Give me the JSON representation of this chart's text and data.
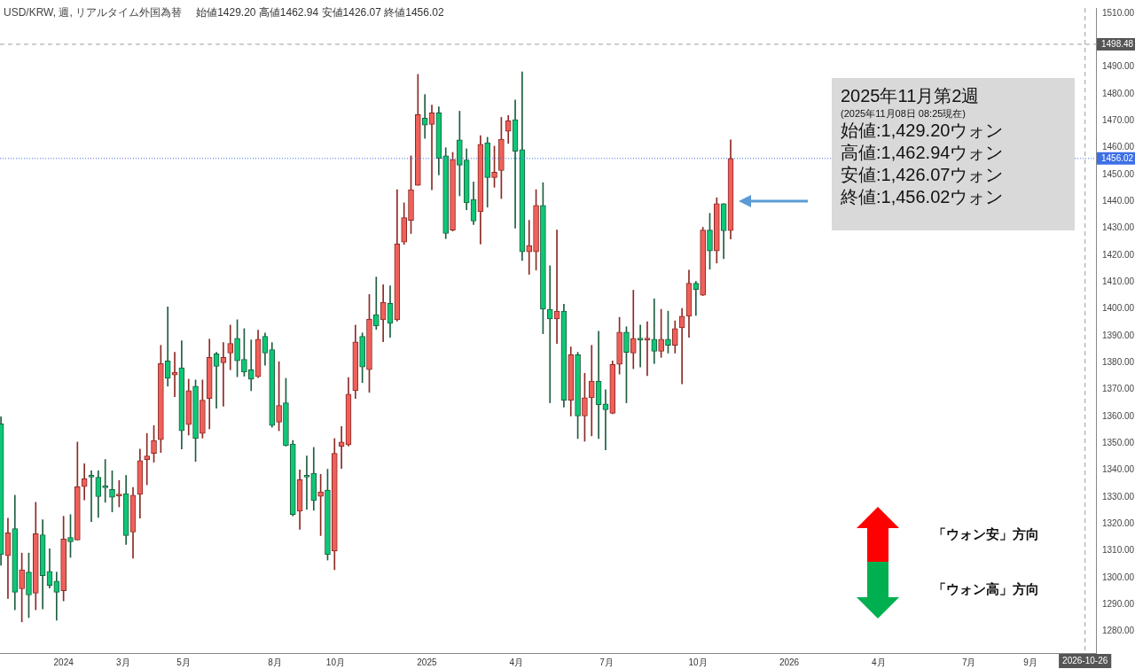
{
  "chart_data": {
    "type": "candlestick",
    "title": "USD/KRW, 週, リアルタイム外国為替",
    "subtitle": "始値1429.20 高値1462.94 安値1426.07 終値1456.02",
    "x": [
      "2023-10-30",
      "2023-11-06",
      "2023-11-13",
      "2023-11-20",
      "2023-11-27",
      "2023-12-04",
      "2023-12-11",
      "2023-12-18",
      "2023-12-25",
      "2024-01-01",
      "2024-01-08",
      "2024-01-15",
      "2024-01-22",
      "2024-01-29",
      "2024-02-05",
      "2024-02-12",
      "2024-02-19",
      "2024-02-26",
      "2024-03-04",
      "2024-03-11",
      "2024-03-18",
      "2024-03-25",
      "2024-04-01",
      "2024-04-08",
      "2024-04-15",
      "2024-04-22",
      "2024-04-29",
      "2024-05-06",
      "2024-05-13",
      "2024-05-20",
      "2024-05-27",
      "2024-06-03",
      "2024-06-10",
      "2024-06-17",
      "2024-06-24",
      "2024-07-01",
      "2024-07-08",
      "2024-07-15",
      "2024-07-22",
      "2024-07-29",
      "2024-08-05",
      "2024-08-12",
      "2024-08-19",
      "2024-08-26",
      "2024-09-02",
      "2024-09-09",
      "2024-09-16",
      "2024-09-23",
      "2024-09-30",
      "2024-10-07",
      "2024-10-14",
      "2024-10-21",
      "2024-10-28",
      "2024-11-04",
      "2024-11-11",
      "2024-11-18",
      "2024-11-25",
      "2024-12-02",
      "2024-12-09",
      "2024-12-16",
      "2024-12-23",
      "2024-12-30",
      "2025-01-06",
      "2025-01-13",
      "2025-01-20",
      "2025-01-27",
      "2025-02-03",
      "2025-02-10",
      "2025-02-17",
      "2025-02-24",
      "2025-03-03",
      "2025-03-10",
      "2025-03-17",
      "2025-03-24",
      "2025-03-31",
      "2025-04-07",
      "2025-04-14",
      "2025-04-21",
      "2025-04-28",
      "2025-05-05",
      "2025-05-12",
      "2025-05-19",
      "2025-05-26",
      "2025-06-02",
      "2025-06-09",
      "2025-06-16",
      "2025-06-23",
      "2025-06-30",
      "2025-07-07",
      "2025-07-14",
      "2025-07-21",
      "2025-07-28",
      "2025-08-04",
      "2025-08-11",
      "2025-08-18",
      "2025-08-25",
      "2025-09-01",
      "2025-09-08",
      "2025-09-15",
      "2025-09-22",
      "2025-09-29",
      "2025-10-06",
      "2025-10-13",
      "2025-10-20",
      "2025-10-27",
      "2025-11-03"
    ],
    "ohlc": [
      [
        1357.3,
        1359.9,
        1304.7,
        1308.6
      ],
      [
        1308.2,
        1322.2,
        1292.3,
        1316.7
      ],
      [
        1318.3,
        1330.7,
        1288.1,
        1294.6
      ],
      [
        1295.9,
        1309.2,
        1283.6,
        1303.0
      ],
      [
        1302.1,
        1309.2,
        1285.2,
        1293.6
      ],
      [
        1294.3,
        1328.1,
        1288.1,
        1316.4
      ],
      [
        1316.0,
        1321.6,
        1288.4,
        1300.8
      ],
      [
        1302.4,
        1310.8,
        1296.2,
        1297.2
      ],
      [
        1298.8,
        1302.1,
        1284.2,
        1294.6
      ],
      [
        1295.2,
        1322.9,
        1291.4,
        1314.4
      ],
      [
        1315.0,
        1323.5,
        1307.6,
        1313.4
      ],
      [
        1314.1,
        1350.5,
        1314.1,
        1333.9
      ],
      [
        1333.9,
        1342.4,
        1329.0,
        1336.8
      ],
      [
        1338.0,
        1339.8,
        1320.9,
        1337.5
      ],
      [
        1337.4,
        1339.8,
        1322.5,
        1330.2
      ],
      [
        1334.0,
        1344.0,
        1328.1,
        1333.5
      ],
      [
        1332.9,
        1339.8,
        1324.5,
        1330.0
      ],
      [
        1330.5,
        1336.2,
        1326.4,
        1331.0
      ],
      [
        1331.3,
        1338.1,
        1312.4,
        1315.7
      ],
      [
        1317.0,
        1333.6,
        1307.3,
        1330.7
      ],
      [
        1331.0,
        1347.9,
        1322.2,
        1343.6
      ],
      [
        1344.0,
        1353.7,
        1334.6,
        1345.3
      ],
      [
        1346.3,
        1356.6,
        1343.0,
        1351.1
      ],
      [
        1351.4,
        1386.5,
        1346.6,
        1379.7
      ],
      [
        1380.7,
        1400.8,
        1371.3,
        1374.2
      ],
      [
        1375.5,
        1383.9,
        1367.4,
        1376.5
      ],
      [
        1378.1,
        1388.2,
        1347.9,
        1354.7
      ],
      [
        1357.0,
        1373.9,
        1353.1,
        1369.6
      ],
      [
        1371.3,
        1373.6,
        1343.3,
        1351.8
      ],
      [
        1353.7,
        1373.6,
        1352.0,
        1366.1
      ],
      [
        1366.7,
        1388.8,
        1355.4,
        1382.0
      ],
      [
        1383.3,
        1383.9,
        1363.1,
        1378.7
      ],
      [
        1380.0,
        1387.5,
        1363.8,
        1382.0
      ],
      [
        1383.6,
        1394.0,
        1377.4,
        1387.2
      ],
      [
        1389.1,
        1396.0,
        1374.8,
        1380.7
      ],
      [
        1381.3,
        1392.7,
        1375.0,
        1376.5
      ],
      [
        1377.4,
        1388.5,
        1369.6,
        1373.9
      ],
      [
        1374.8,
        1392.1,
        1374.5,
        1388.8
      ],
      [
        1389.8,
        1391.1,
        1379.1,
        1383.6
      ],
      [
        1384.9,
        1387.5,
        1356.0,
        1356.7
      ],
      [
        1357.9,
        1380.4,
        1354.7,
        1364.1
      ],
      [
        1365.1,
        1374.2,
        1349.0,
        1349.2
      ],
      [
        1349.8,
        1351.1,
        1323.0,
        1323.5
      ],
      [
        1324.8,
        1340.1,
        1318.0,
        1336.5
      ],
      [
        1338.0,
        1345.3,
        1325.4,
        1337.5
      ],
      [
        1338.9,
        1348.5,
        1325.1,
        1328.7
      ],
      [
        1330.3,
        1338.5,
        1315.7,
        1332.0
      ],
      [
        1332.6,
        1340.4,
        1306.6,
        1308.6
      ],
      [
        1309.9,
        1351.8,
        1303.0,
        1346.3
      ],
      [
        1348.9,
        1356.3,
        1340.7,
        1350.5
      ],
      [
        1349.5,
        1374.5,
        1349.0,
        1368.3
      ],
      [
        1369.6,
        1394.0,
        1366.7,
        1387.8
      ],
      [
        1389.8,
        1391.1,
        1372.6,
        1378.4
      ],
      [
        1377.4,
        1405.4,
        1369.0,
        1396.3
      ],
      [
        1397.9,
        1411.9,
        1392.4,
        1393.7
      ],
      [
        1396.0,
        1409.0,
        1387.8,
        1402.5
      ],
      [
        1402.1,
        1408.6,
        1389.5,
        1394.7
      ],
      [
        1396.0,
        1444.4,
        1395.5,
        1424.2
      ],
      [
        1424.9,
        1439.5,
        1424.0,
        1434.0
      ],
      [
        1433.0,
        1457.0,
        1428.1,
        1444.4
      ],
      [
        1446.0,
        1487.3,
        1446.0,
        1472.3
      ],
      [
        1471.0,
        1479.8,
        1463.5,
        1468.4
      ],
      [
        1468.7,
        1475.9,
        1444.4,
        1473.0
      ],
      [
        1473.0,
        1475.2,
        1449.9,
        1456.1
      ],
      [
        1457.0,
        1460.0,
        1426.2,
        1428.1
      ],
      [
        1429.4,
        1458.3,
        1429.0,
        1455.7
      ],
      [
        1462.9,
        1473.6,
        1442.1,
        1453.5
      ],
      [
        1455.4,
        1459.6,
        1436.9,
        1439.5
      ],
      [
        1440.8,
        1447.3,
        1431.4,
        1432.7
      ],
      [
        1436.2,
        1464.5,
        1424.2,
        1461.3
      ],
      [
        1461.9,
        1463.9,
        1437.9,
        1448.9
      ],
      [
        1448.9,
        1460.6,
        1445.3,
        1450.9
      ],
      [
        1451.5,
        1471.3,
        1441.1,
        1463.2
      ],
      [
        1466.1,
        1472.0,
        1461.6,
        1470.0
      ],
      [
        1470.4,
        1477.8,
        1430.1,
        1458.7
      ],
      [
        1459.3,
        1488.2,
        1418.1,
        1421.3
      ],
      [
        1421.3,
        1433.0,
        1412.9,
        1423.6
      ],
      [
        1421.3,
        1444.4,
        1414.5,
        1438.5
      ],
      [
        1438.5,
        1447.0,
        1390.8,
        1399.9
      ],
      [
        1399.9,
        1416.1,
        1365.1,
        1396.3
      ],
      [
        1396.3,
        1429.4,
        1387.2,
        1399.2
      ],
      [
        1399.2,
        1401.8,
        1363.5,
        1366.1
      ],
      [
        1366.1,
        1385.9,
        1360.2,
        1383.0
      ],
      [
        1383.0,
        1383.9,
        1351.8,
        1360.2
      ],
      [
        1360.2,
        1376.1,
        1350.8,
        1367.0
      ],
      [
        1367.0,
        1386.5,
        1352.8,
        1373.2
      ],
      [
        1373.2,
        1391.7,
        1351.8,
        1364.4
      ],
      [
        1364.7,
        1370.0,
        1347.6,
        1362.5
      ],
      [
        1361.2,
        1380.7,
        1361.0,
        1379.4
      ],
      [
        1379.4,
        1396.9,
        1375.8,
        1391.4
      ],
      [
        1391.4,
        1393.4,
        1365.1,
        1383.9
      ],
      [
        1383.6,
        1407.0,
        1377.8,
        1389.1
      ],
      [
        1389.0,
        1394.0,
        1378.4,
        1388.5
      ],
      [
        1388.5,
        1395.3,
        1375.2,
        1389.0
      ],
      [
        1388.8,
        1403.8,
        1379.7,
        1384.3
      ],
      [
        1384.3,
        1399.9,
        1382.0,
        1388.8
      ],
      [
        1388.8,
        1399.2,
        1383.6,
        1386.5
      ],
      [
        1386.5,
        1395.6,
        1383.6,
        1392.7
      ],
      [
        1393.0,
        1400.2,
        1372.2,
        1397.3
      ],
      [
        1397.3,
        1414.5,
        1389.5,
        1409.6
      ],
      [
        1409.6,
        1410.3,
        1397.6,
        1407.3
      ],
      [
        1405.1,
        1430.4,
        1405.0,
        1429.4
      ],
      [
        1429.4,
        1435.6,
        1414.8,
        1421.6
      ],
      [
        1421.6,
        1441.4,
        1417.1,
        1439.2
      ],
      [
        1439.2,
        1439.2,
        1418.7,
        1429.1
      ],
      [
        1429.2,
        1462.94,
        1426.07,
        1456.02
      ]
    ],
    "xlim": [
      "2023-10-29",
      "2026-11-06"
    ],
    "xticks": [
      {
        "value": "2024-01-01",
        "label": "2024"
      },
      {
        "value": "2024-03-01",
        "label": "3月"
      },
      {
        "value": "2024-05-01",
        "label": "5月"
      },
      {
        "value": "2024-08-01",
        "label": "8月"
      },
      {
        "value": "2024-10-01",
        "label": "10月"
      },
      {
        "value": "2025-01-01",
        "label": "2025"
      },
      {
        "value": "2025-04-01",
        "label": "4月"
      },
      {
        "value": "2025-07-01",
        "label": "7月"
      },
      {
        "value": "2025-10-01",
        "label": "10月"
      },
      {
        "value": "2026-01-01",
        "label": "2026"
      },
      {
        "value": "2026-04-01",
        "label": "4月"
      },
      {
        "value": "2026-07-01",
        "label": "7月"
      },
      {
        "value": "2026-09-01",
        "label": "9月"
      }
    ],
    "ylim": [
      1272,
      1512
    ],
    "yticks": [
      {
        "value": 1280,
        "label": "1280.00"
      },
      {
        "value": 1290,
        "label": "1290.00"
      },
      {
        "value": 1300,
        "label": "1300.00"
      },
      {
        "value": 1310,
        "label": "1310.00"
      },
      {
        "value": 1320,
        "label": "1320.00"
      },
      {
        "value": 1330,
        "label": "1330.00"
      },
      {
        "value": 1340,
        "label": "1340.00"
      },
      {
        "value": 1350,
        "label": "1350.00"
      },
      {
        "value": 1360,
        "label": "1360.00"
      },
      {
        "value": 1370,
        "label": "1370.00"
      },
      {
        "value": 1380,
        "label": "1380.00"
      },
      {
        "value": 1390,
        "label": "1390.00"
      },
      {
        "value": 1400,
        "label": "1400.00"
      },
      {
        "value": 1410,
        "label": "1410.00"
      },
      {
        "value": 1420,
        "label": "1420.00"
      },
      {
        "value": 1430,
        "label": "1430.00"
      },
      {
        "value": 1440,
        "label": "1440.00"
      },
      {
        "value": 1450,
        "label": "1450.00"
      },
      {
        "value": 1460,
        "label": "1460.00"
      },
      {
        "value": 1470,
        "label": "1470.00"
      },
      {
        "value": 1480,
        "label": "1480.00"
      },
      {
        "value": 1490,
        "label": "1490.00"
      },
      {
        "value": 1510,
        "label": "1510.00"
      }
    ],
    "ref_lines": [
      {
        "axis": "y",
        "value": 1498.48,
        "label": "1498.48",
        "color": "#9e9e9e",
        "line_style": "dashed"
      },
      {
        "axis": "y",
        "value": 1456.02,
        "label": "1456.02",
        "color": "#3d6fe6",
        "line_style": "dotted"
      },
      {
        "axis": "x",
        "value": "2026-10-26",
        "label": "2026-10-26",
        "color": "#9e9e9e",
        "line_style": "dashed"
      }
    ],
    "annotations": [
      "2025年11月第2週",
      "(2025年11月08日 08:25現在)",
      "始値:1,429.20ウォン",
      "高値:1,462.94ウォン",
      "安値:1,426.07ウォン",
      "終値:1,456.02ウォン",
      "「ウォン安」方向",
      "「ウォン高」方向"
    ]
  }
}
